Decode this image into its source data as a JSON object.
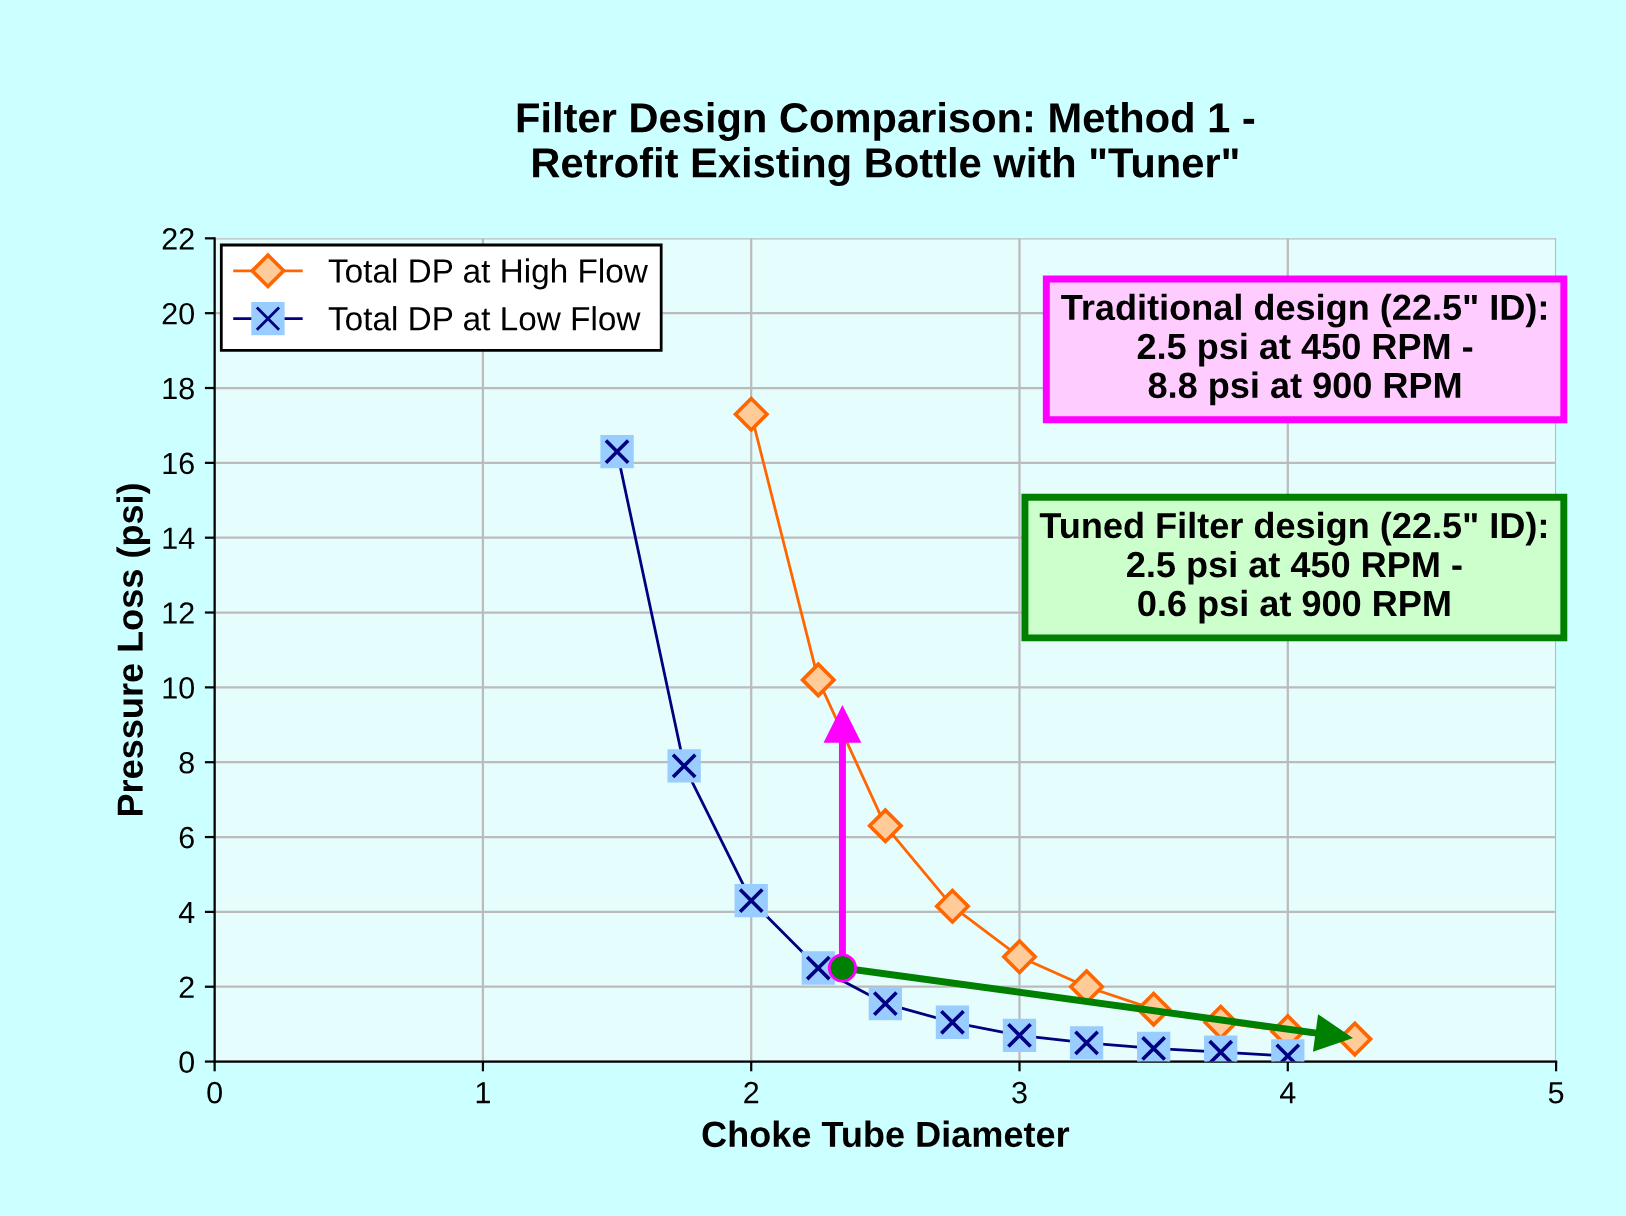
{
  "chart_data": {
    "type": "line",
    "title": "Filter Design Comparison: Method 1 -\nRetrofit Existing Bottle with \"Tuner\"",
    "xlabel": "Choke Tube Diameter",
    "ylabel": "Pressure Loss (psi)",
    "xlim": [
      0,
      5
    ],
    "xticks": [
      0,
      1,
      2,
      3,
      4,
      5
    ],
    "ylim": [
      0,
      22
    ],
    "yticks": [
      0,
      2,
      4,
      6,
      8,
      10,
      12,
      14,
      16,
      18,
      20,
      22
    ],
    "grid": true,
    "legend": "top left",
    "series": [
      {
        "name": "Total DP at High Flow",
        "color": "#ff6600",
        "marker": "diamond",
        "x": [
          2,
          2.25,
          2.5,
          2.75,
          3,
          3.25,
          3.5,
          3.75,
          4,
          4.25
        ],
        "values": [
          17.3,
          10.2,
          6.3,
          4.15,
          2.8,
          2.0,
          1.4,
          1.05,
          0.8,
          0.6
        ]
      },
      {
        "name": "Total DP at Low Flow",
        "color": "#000080",
        "marker": "cross",
        "x": [
          1.5,
          1.75,
          2,
          2.25,
          2.5,
          2.75,
          3,
          3.25,
          3.5,
          3.75,
          4
        ],
        "values": [
          16.3,
          7.9,
          4.3,
          2.5,
          1.55,
          1.05,
          0.7,
          0.5,
          0.35,
          0.25,
          0.15
        ]
      },
      {
        "type": "line",
        "color": "#ff00ff",
        "marker": "triangle",
        "x": [
          2.34,
          2.34
        ],
        "values": [
          2.5,
          9.0
        ]
      },
      {
        "type": "line",
        "color": "#008000",
        "marker": "triangle",
        "x": [
          2.34,
          4.17
        ],
        "values": [
          2.5,
          0.7
        ]
      },
      {
        "type": "scatter",
        "color": "#008000",
        "marker": "circle",
        "x": [
          2.34
        ],
        "values": [
          2.5
        ]
      }
    ],
    "annotations": [
      "Traditional design (22.5\" ID):\n2.5 psi at 450 RPM -\n8.8 psi at 900 RPM",
      "Tuned Filter design (22.5\" ID):\n2.5 psi at 450 RPM -\n0.6 psi at 900 RPM"
    ]
  }
}
